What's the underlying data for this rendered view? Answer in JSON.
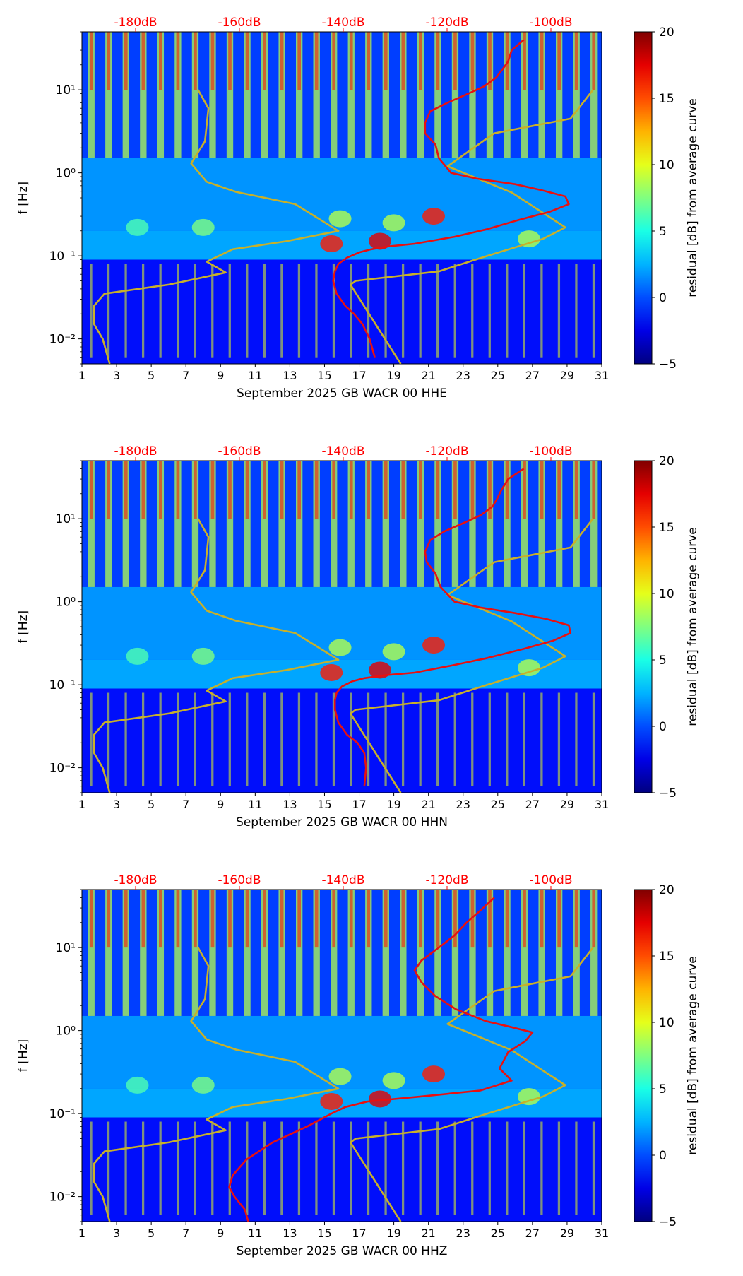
{
  "chart_data": [
    {
      "type": "heatmap",
      "xlabel": "September 2025 GB WACR 00 HHE",
      "ylabel": "f [Hz]",
      "xlim": [
        1,
        31
      ],
      "ylim": [
        0.005,
        50
      ],
      "yscale": "log",
      "x_ticks": [
        1,
        3,
        5,
        7,
        9,
        11,
        13,
        15,
        17,
        19,
        21,
        23,
        25,
        27,
        29,
        31
      ],
      "y_ticks": [
        {
          "value": 0.01,
          "label": "10⁻²"
        },
        {
          "value": 0.1,
          "label": "10⁻¹"
        },
        {
          "value": 1,
          "label": "10⁰"
        },
        {
          "value": 10,
          "label": "10¹"
        }
      ],
      "top_ticks": [
        "-180dB",
        "-160dB",
        "-140dB",
        "-120dB",
        "-100dB"
      ],
      "top_tick_color": "#ff0000",
      "colorbar": {
        "label": "residual [dB] from average curve",
        "min": -5,
        "max": 20,
        "ticks": [
          -5,
          0,
          5,
          10,
          15,
          20
        ],
        "cmap": "jet"
      },
      "series": [
        {
          "color": "#c8b02a",
          "x": [
            7.7,
            8.3,
            8.1,
            7.3,
            8.2,
            9.9,
            13.3,
            15.8,
            12.8,
            9.7,
            8.2,
            9.3,
            6.0,
            2.3,
            1.7,
            1.7,
            2.2,
            2.6
          ],
          "y": [
            10,
            6,
            2.4,
            1.3,
            0.78,
            0.59,
            0.42,
            0.2,
            0.15,
            0.12,
            0.085,
            0.063,
            0.045,
            0.035,
            0.025,
            0.015,
            0.01,
            0.005
          ]
        },
        {
          "color": "#c8b02a",
          "x": [
            30.5,
            29.2,
            24.8,
            22.1,
            25.8,
            28.9,
            27.6,
            24.4,
            21.6,
            16.8,
            16.5,
            19.4
          ],
          "y": [
            10,
            4.5,
            3,
            1.2,
            0.58,
            0.22,
            0.16,
            0.1,
            0.065,
            0.05,
            0.045,
            0.005
          ]
        },
        {
          "color": "#e81010",
          "x": [
            26.5,
            25.8,
            25.6,
            25.3,
            24.9,
            24.2,
            23.3,
            22.1,
            21.1,
            20.8,
            20.8,
            21.4,
            21.6,
            22.3,
            23.8,
            26.0,
            27.5,
            28.9,
            29.1,
            28.0,
            26.2,
            24.4,
            22.5,
            20.2,
            18.7,
            17.7,
            17.0,
            16.3,
            15.8,
            15.6,
            15.5,
            15.7,
            16.2,
            16.7,
            17.2,
            17.6,
            17.9
          ],
          "y": [
            40,
            30,
            22,
            18,
            14,
            11,
            9,
            7,
            5.5,
            4,
            3,
            2.2,
            1.5,
            1.0,
            0.85,
            0.73,
            0.62,
            0.52,
            0.42,
            0.34,
            0.27,
            0.21,
            0.17,
            0.14,
            0.13,
            0.12,
            0.11,
            0.095,
            0.08,
            0.065,
            0.05,
            0.035,
            0.025,
            0.02,
            0.015,
            0.01,
            0.006
          ]
        }
      ]
    },
    {
      "type": "heatmap",
      "xlabel": "September 2025 GB WACR 00 HHN",
      "ylabel": "f [Hz]",
      "xlim": [
        1,
        31
      ],
      "ylim": [
        0.005,
        50
      ],
      "yscale": "log",
      "x_ticks": [
        1,
        3,
        5,
        7,
        9,
        11,
        13,
        15,
        17,
        19,
        21,
        23,
        25,
        27,
        29,
        31
      ],
      "y_ticks": [
        {
          "value": 0.01,
          "label": "10⁻²"
        },
        {
          "value": 0.1,
          "label": "10⁻¹"
        },
        {
          "value": 1,
          "label": "10⁰"
        },
        {
          "value": 10,
          "label": "10¹"
        }
      ],
      "top_ticks": [
        "-180dB",
        "-160dB",
        "-140dB",
        "-120dB",
        "-100dB"
      ],
      "top_tick_color": "#ff0000",
      "colorbar": {
        "label": "residual [dB] from average curve",
        "min": -5,
        "max": 20,
        "ticks": [
          -5,
          0,
          5,
          10,
          15,
          20
        ],
        "cmap": "jet"
      },
      "series": [
        {
          "color": "#c8b02a",
          "x": [
            7.7,
            8.3,
            8.1,
            7.3,
            8.2,
            9.9,
            13.3,
            15.8,
            12.8,
            9.7,
            8.2,
            9.3,
            6.0,
            2.3,
            1.7,
            1.7,
            2.2,
            2.6
          ],
          "y": [
            10,
            6,
            2.4,
            1.3,
            0.78,
            0.59,
            0.42,
            0.2,
            0.15,
            0.12,
            0.085,
            0.063,
            0.045,
            0.035,
            0.025,
            0.015,
            0.01,
            0.005
          ]
        },
        {
          "color": "#c8b02a",
          "x": [
            30.5,
            29.2,
            24.8,
            22.1,
            25.8,
            28.9,
            27.6,
            24.4,
            21.6,
            16.8,
            16.5,
            19.4
          ],
          "y": [
            10,
            4.5,
            3,
            1.2,
            0.58,
            0.22,
            0.16,
            0.1,
            0.065,
            0.05,
            0.045,
            0.005
          ]
        },
        {
          "color": "#e81010",
          "x": [
            26.5,
            25.6,
            25.2,
            25.0,
            24.7,
            24.0,
            23.1,
            21.9,
            21.1,
            20.8,
            20.9,
            21.4,
            21.7,
            22.5,
            24.0,
            26.0,
            27.8,
            29.1,
            29.2,
            28.2,
            26.5,
            24.4,
            22.3,
            20.2,
            18.5,
            17.3,
            16.6,
            16.0,
            15.7,
            15.6,
            15.6,
            15.8,
            16.3,
            16.9,
            17.3,
            17.4,
            17.3
          ],
          "y": [
            40,
            30,
            22,
            18,
            14,
            11,
            9,
            7,
            5.5,
            4,
            3,
            2.2,
            1.5,
            1.0,
            0.85,
            0.73,
            0.62,
            0.52,
            0.42,
            0.34,
            0.27,
            0.21,
            0.17,
            0.14,
            0.13,
            0.12,
            0.11,
            0.095,
            0.08,
            0.065,
            0.05,
            0.035,
            0.025,
            0.02,
            0.015,
            0.01,
            0.006
          ]
        }
      ]
    },
    {
      "type": "heatmap",
      "xlabel": "September 2025 GB WACR 00 HHZ",
      "ylabel": "f [Hz]",
      "xlim": [
        1,
        31
      ],
      "ylim": [
        0.005,
        50
      ],
      "yscale": "log",
      "x_ticks": [
        1,
        3,
        5,
        7,
        9,
        11,
        13,
        15,
        17,
        19,
        21,
        23,
        25,
        27,
        29,
        31
      ],
      "y_ticks": [
        {
          "value": 0.01,
          "label": "10⁻²"
        },
        {
          "value": 0.1,
          "label": "10⁻¹"
        },
        {
          "value": 1,
          "label": "10⁰"
        },
        {
          "value": 10,
          "label": "10¹"
        }
      ],
      "top_ticks": [
        "-180dB",
        "-160dB",
        "-140dB",
        "-120dB",
        "-100dB"
      ],
      "top_tick_color": "#ff0000",
      "colorbar": {
        "label": "residual [dB] from average curve",
        "min": -5,
        "max": 20,
        "ticks": [
          -5,
          0,
          5,
          10,
          15,
          20
        ],
        "cmap": "jet"
      },
      "series": [
        {
          "color": "#c8b02a",
          "x": [
            7.7,
            8.3,
            8.1,
            7.3,
            8.2,
            9.9,
            13.3,
            15.8,
            12.8,
            9.7,
            8.2,
            9.3,
            6.0,
            2.3,
            1.7,
            1.7,
            2.2,
            2.6
          ],
          "y": [
            10,
            6,
            2.4,
            1.3,
            0.78,
            0.59,
            0.42,
            0.2,
            0.15,
            0.12,
            0.085,
            0.063,
            0.045,
            0.035,
            0.025,
            0.015,
            0.01,
            0.005
          ]
        },
        {
          "color": "#c8b02a",
          "x": [
            30.5,
            29.2,
            24.8,
            22.1,
            25.8,
            28.9,
            27.6,
            24.4,
            21.6,
            16.8,
            16.5,
            19.4
          ],
          "y": [
            10,
            4.5,
            3,
            1.2,
            0.58,
            0.22,
            0.16,
            0.1,
            0.065,
            0.05,
            0.045,
            0.005
          ]
        },
        {
          "color": "#e81010",
          "x": [
            24.8,
            24.0,
            23.2,
            22.5,
            21.6,
            20.6,
            20.2,
            20.6,
            21.4,
            22.6,
            24.3,
            25.8,
            27.0,
            26.6,
            25.6,
            25.1,
            25.8,
            24.0,
            20.5,
            17.5,
            16.2,
            15.4,
            14.0,
            12.0,
            10.5,
            9.7,
            9.5,
            9.8,
            10.4,
            10.6
          ],
          "y": [
            40,
            28,
            20,
            14,
            10,
            7,
            5.3,
            3.8,
            2.6,
            1.8,
            1.3,
            1.1,
            0.95,
            0.75,
            0.55,
            0.35,
            0.25,
            0.19,
            0.16,
            0.14,
            0.12,
            0.1,
            0.07,
            0.045,
            0.028,
            0.018,
            0.013,
            0.01,
            0.007,
            0.005
          ]
        }
      ]
    }
  ]
}
